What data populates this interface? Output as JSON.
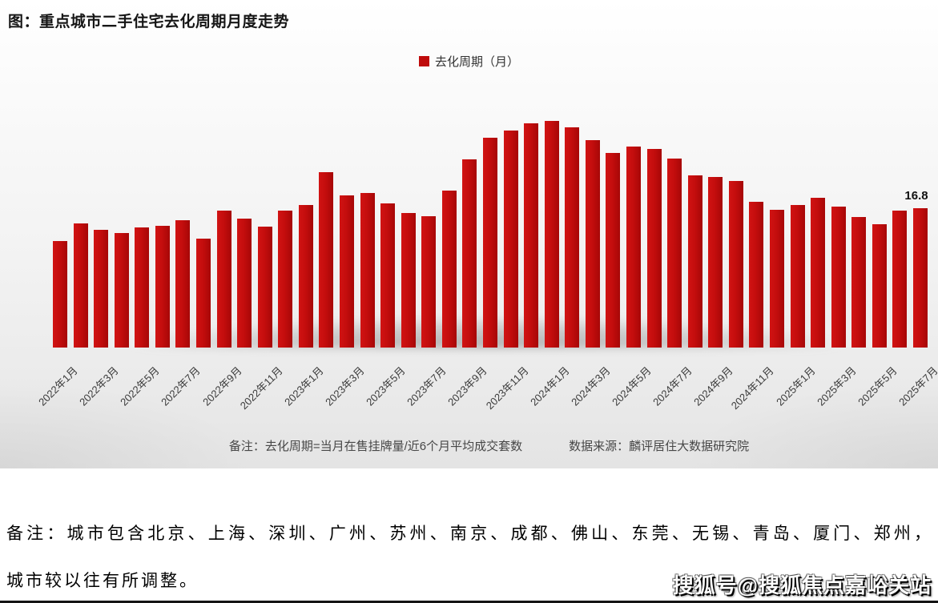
{
  "title": "图：重点城市二手住宅去化周期月度走势",
  "legend": {
    "label": "去化周期（月）",
    "color": "#bf0b0b"
  },
  "annotation": {
    "last_value_label": "16.8"
  },
  "footnote": {
    "note": "备注：去化周期=当月在售挂牌量/近6个月平均成交套数",
    "source": "数据来源：麟评居住大数据研究院"
  },
  "bottom_note": {
    "line1": "备注：城市包含北京、上海、深圳、广州、苏州、南京、成都、佛山、东莞、无锡、青岛、厦门、郑州，",
    "line2": "城市较以往有所调整。"
  },
  "watermark": "搜狐号@搜狐焦点嘉峪关站",
  "chart_data": {
    "type": "bar",
    "title": "图：重点城市二手住宅去化周期月度走势",
    "series_name": "去化周期（月）",
    "bar_color": "#c30d0d",
    "ylabel": "去化周期（月）",
    "ylim": [
      0,
      30
    ],
    "legend_position": "top-center",
    "grid": false,
    "last_point_label": "16.8",
    "categories": [
      "2022年1月",
      "2022年2月",
      "2022年3月",
      "2022年4月",
      "2022年5月",
      "2022年6月",
      "2022年7月",
      "2022年8月",
      "2022年9月",
      "2022年10月",
      "2022年11月",
      "2022年12月",
      "2023年1月",
      "2023年2月",
      "2023年3月",
      "2023年4月",
      "2023年5月",
      "2023年6月",
      "2023年7月",
      "2023年8月",
      "2023年9月",
      "2023年10月",
      "2023年11月",
      "2023年12月",
      "2024年1月",
      "2024年2月",
      "2024年3月",
      "2024年4月",
      "2024年5月",
      "2024年6月",
      "2024年7月",
      "2024年8月",
      "2024年9月",
      "2024年10月",
      "2024年11月",
      "2024年12月",
      "2025年1月",
      "2025年2月",
      "2025年3月",
      "2025年4月",
      "2025年5月",
      "2025年6月",
      "2025年7月"
    ],
    "values": [
      12.8,
      15.0,
      14.2,
      13.8,
      14.5,
      14.7,
      15.4,
      13.1,
      16.5,
      15.5,
      14.6,
      16.5,
      17.2,
      21.1,
      18.3,
      18.6,
      17.4,
      16.2,
      15.8,
      18.9,
      22.7,
      25.3,
      26.2,
      27.0,
      27.3,
      26.6,
      25.0,
      23.5,
      24.2,
      23.9,
      22.8,
      20.8,
      20.6,
      20.1,
      17.6,
      16.6,
      17.2,
      18.1,
      17.0,
      15.7,
      14.9,
      16.5,
      16.8
    ],
    "x_tick_labels": [
      "2022年1月",
      "2022年3月",
      "2022年5月",
      "2022年7月",
      "2022年9月",
      "2022年11月",
      "2023年1月",
      "2023年3月",
      "2023年5月",
      "2023年7月",
      "2023年9月",
      "2023年11月",
      "2024年1月",
      "2024年3月",
      "2024年5月",
      "2024年7月",
      "2024年9月",
      "2024年11月",
      "2025年1月",
      "2025年3月",
      "2025年5月",
      "2025年7月"
    ]
  }
}
